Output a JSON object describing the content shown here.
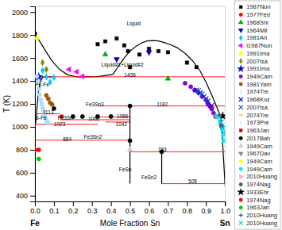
{
  "chart_data": {
    "type": "scatter",
    "xlabel": "Mole Fraction Sn",
    "ylabel": "T (K)",
    "xlim": [
      0.0,
      1.0
    ],
    "ylim": [
      350,
      2050
    ],
    "xticks": [
      {
        "value": 0.0,
        "label": "0.0"
      },
      0.1,
      0.2,
      0.3,
      0.4,
      0.5,
      0.6,
      0.7,
      0.8,
      0.9,
      {
        "value": 1.0,
        "label": "1.0"
      }
    ],
    "yticks": [
      400,
      600,
      800,
      1000,
      1200,
      1400,
      1600,
      1800,
      2000
    ],
    "series": [
      {
        "type": "line",
        "color": "black",
        "x": [
          0.0,
          0.01,
          0.02,
          0.04,
          0.06,
          0.08,
          0.1,
          0.13,
          0.17,
          0.22,
          0.28,
          0.33,
          0.38,
          0.41
        ],
        "values": [
          1811,
          1785,
          1758,
          1705,
          1650,
          1600,
          1555,
          1500,
          1455,
          1435,
          1436,
          1438,
          1450,
          1456
        ]
      },
      {
        "type": "line",
        "color": "black",
        "x": [
          0.41,
          0.44,
          0.47,
          0.5,
          0.53,
          0.56,
          0.59,
          0.62,
          0.65,
          0.68,
          0.71,
          0.75,
          0.79,
          0.83,
          0.87,
          0.9,
          0.93,
          0.96,
          0.98,
          1.0
        ],
        "values": [
          1456,
          1530,
          1600,
          1660,
          1700,
          1730,
          1748,
          1752,
          1748,
          1735,
          1718,
          1688,
          1640,
          1575,
          1485,
          1390,
          1280,
          1160,
          1080,
          505
        ]
      },
      {
        "type": "line",
        "color": "black",
        "x": [
          0.0,
          0.004,
          0.008,
          0.012,
          0.018,
          0.025,
          0.04,
          0.06,
          0.09
        ],
        "values": [
          995,
          1040,
          1100,
          1190,
          1300,
          1380,
          1432,
          1436,
          1436
        ]
      },
      {
        "type": "line",
        "color": "red",
        "x": [
          0.0,
          1.0
        ],
        "values": [
          1436,
          1436
        ]
      },
      {
        "type": "line",
        "color": "red",
        "x": [
          0.33,
          1.0
        ],
        "values": [
          1182,
          1182
        ]
      },
      {
        "type": "line",
        "color": "red",
        "x": [
          0.33,
          0.5
        ],
        "values": [
          1086,
          1086
        ]
      },
      {
        "type": "line",
        "color": "red",
        "x": [
          0.13,
          0.5
        ],
        "values": [
          1062,
          1062
        ]
      },
      {
        "type": "line",
        "color": "red",
        "x": [
          0.0,
          0.13
        ],
        "values": [
          1113,
          1113
        ]
      },
      {
        "type": "line",
        "color": "red",
        "x": [
          0.0,
          0.33
        ],
        "values": [
          1023,
          1023
        ]
      },
      {
        "type": "line",
        "color": "red",
        "x": [
          0.0,
          0.5
        ],
        "values": [
          884,
          884
        ]
      },
      {
        "type": "line",
        "color": "red",
        "x": [
          0.5,
          1.0
        ],
        "values": [
          783,
          783
        ]
      },
      {
        "type": "line",
        "color": "red",
        "x": [
          0.667,
          1.0
        ],
        "values": [
          505,
          505
        ]
      },
      {
        "type": "line",
        "color": "red",
        "x": [
          0.37,
          0.5
        ],
        "values": [
          1042,
          1042
        ]
      },
      {
        "type": "line",
        "color": "black",
        "x": [
          0.5,
          0.5
        ],
        "values": [
          505,
          1182
        ]
      },
      {
        "type": "line",
        "color": "black",
        "x": [
          0.667,
          0.667
        ],
        "values": [
          505,
          783
        ]
      },
      {
        "type": "scatter",
        "color": "#000000",
        "marker": "square",
        "x": [
          0.0,
          0.33,
          0.37,
          0.43,
          0.47,
          0.49,
          0.5,
          0.55,
          0.6,
          0.65,
          0.7,
          0.8,
          0.85
        ],
        "values": [
          1811,
          1720,
          1745,
          1770,
          1710,
          1660,
          1520,
          1630,
          1680,
          1660,
          1650,
          1560,
          1520
        ]
      },
      {
        "type": "scatter",
        "color": "#ff0000",
        "marker": "circle",
        "x": [
          0.0
        ],
        "values": [
          800
        ]
      },
      {
        "type": "scatter",
        "color": "#00aa00",
        "marker": "triangle-up",
        "x": [
          0.37,
          0.7
        ],
        "values": [
          1630,
          1420
        ]
      },
      {
        "type": "scatter",
        "color": "#0000cc",
        "marker": "triangle-down",
        "x": [
          0.43,
          0.6
        ],
        "values": [
          1590,
          1650
        ]
      },
      {
        "type": "scatter",
        "color": "#00ccff",
        "marker": "diamond",
        "x": [
          0.04,
          0.06,
          0.08,
          0.1
        ],
        "values": [
          1490,
          1435,
          1390,
          1430
        ]
      },
      {
        "type": "scatter",
        "color": "#ff00ff",
        "marker": "triangle-left",
        "x": [
          0.18,
          0.22,
          0.25
        ],
        "values": [
          1500,
          1480,
          1440
        ]
      },
      {
        "type": "scatter",
        "color": "#ffff00",
        "marker": "triangle-up",
        "x": [
          0.01
        ],
        "values": [
          1775
        ]
      },
      {
        "type": "scatter",
        "color": "#888800",
        "marker": "diamond",
        "x": [
          0.04,
          0.06
        ],
        "values": [
          1560,
          1500
        ]
      },
      {
        "type": "scatter",
        "color": "#0000cc",
        "marker": "star",
        "x": [
          0.02
        ],
        "values": [
          1435
        ]
      },
      {
        "type": "scatter",
        "color": "#8800cc",
        "marker": "circle",
        "x": [
          0.79,
          0.82,
          0.84,
          0.86,
          0.88,
          0.9,
          0.91,
          0.92,
          0.93,
          0.94,
          0.95
        ],
        "values": [
          1380,
          1350,
          1320,
          1300,
          1265,
          1235,
          1200,
          1180,
          1155,
          1120,
          1090
        ]
      },
      {
        "type": "scatter",
        "color": "#aa5500",
        "marker": "circle",
        "x": [
          0.06,
          0.07,
          0.08,
          0.09
        ],
        "values": [
          1275,
          1245,
          1210,
          1195
        ]
      },
      {
        "type": "scatter",
        "color": "#aaddff",
        "marker": "circle",
        "x": [
          0.01,
          0.015,
          0.02,
          0.025,
          0.03,
          0.035,
          0.04,
          0.045,
          0.05,
          0.055,
          0.06,
          0.065,
          0.07
        ],
        "values": [
          1440,
          1390,
          1330,
          1280,
          1235,
          1200,
          1165,
          1135,
          1105,
          1085,
          1062,
          1042,
          1030
        ]
      },
      {
        "type": "scatter",
        "color": "#0000cc",
        "marker": "x",
        "x": [
          0.85,
          0.87,
          0.89,
          0.91,
          0.93
        ],
        "values": [
          1320,
          1295,
          1265,
          1225,
          1185
        ]
      },
      {
        "type": "scatter",
        "color": "#0055cc",
        "marker": "x",
        "x": [
          0.86,
          0.88,
          0.9
        ],
        "values": [
          1315,
          1285,
          1245
        ]
      },
      {
        "type": "scatter",
        "color": "#cc0000",
        "marker": "square",
        "x": [
          0.14
        ],
        "values": [
          1090
        ]
      },
      {
        "type": "scatter",
        "color": "#000000",
        "marker": "circle",
        "x": [
          0.1,
          0.2,
          0.25,
          0.33,
          0.4,
          0.5,
          0.5,
          0.667
        ],
        "values": [
          1160,
          1090,
          1090,
          1090,
          1090,
          880,
          1182,
          783
        ]
      },
      {
        "type": "scatter",
        "color": "#cccccc",
        "marker": "triangle-up",
        "x": [
          0.5
        ],
        "values": [
          800
        ]
      },
      {
        "type": "scatter",
        "color": "#888888",
        "marker": "triangle-down",
        "x": [
          0.95
        ],
        "values": [
          1095
        ]
      },
      {
        "type": "scatter",
        "color": "#ffff00",
        "marker": "circle",
        "x": [
          0.985
        ],
        "values": [
          1095
        ]
      },
      {
        "type": "scatter",
        "color": "#00eeff",
        "marker": "circle",
        "x": [
          0.96,
          0.975,
          0.985,
          0.99,
          0.995
        ],
        "values": [
          1095,
          1040,
          980,
          930,
          880
        ]
      },
      {
        "type": "scatter",
        "color": "#ffaacc",
        "marker": "triangle-right",
        "x": [
          0.975
        ],
        "values": [
          1095
        ]
      },
      {
        "type": "scatter",
        "color": "#555555",
        "marker": "circle",
        "x": [
          0.98
        ],
        "values": [
          1010
        ]
      },
      {
        "type": "scatter",
        "color": "#000000",
        "marker": "star",
        "x": [
          0.988
        ],
        "values": [
          1095
        ]
      },
      {
        "type": "scatter",
        "color": "#ff0000",
        "marker": "circle",
        "x": [
          0.02
        ],
        "values": [
          800
        ]
      },
      {
        "type": "scatter",
        "color": "#00cc00",
        "marker": "circle",
        "x": [
          0.02
        ],
        "values": [
          720
        ]
      },
      {
        "type": "scatter",
        "color": "#2255cc",
        "marker": "plus",
        "x": [
          0.97,
          0.98,
          0.99,
          1.0,
          1.0
        ],
        "values": [
          1100,
          1055,
          1005,
          955,
          505
        ]
      },
      {
        "type": "scatter",
        "color": "#00cccc",
        "marker": "x",
        "x": [
          0.97,
          0.98,
          0.99
        ],
        "values": [
          1080,
          1040,
          990
        ]
      }
    ],
    "annotations": [
      {
        "text": "1436",
        "x": 0.5,
        "y": 1454
      },
      {
        "text": "1182",
        "x": 0.67,
        "y": 1200
      },
      {
        "text": "1086",
        "x": 0.46,
        "y": 1094
      },
      {
        "text": "1062",
        "x": 0.31,
        "y": 1070
      },
      {
        "text": "1113",
        "x": 0.07,
        "y": 1121
      },
      {
        "text": "1023",
        "x": 0.13,
        "y": 1031
      },
      {
        "text": "884",
        "x": 0.17,
        "y": 892
      },
      {
        "text": "783",
        "x": 0.67,
        "y": 801
      },
      {
        "text": "505",
        "x": 0.83,
        "y": 523
      },
      {
        "text": "1042",
        "x": 0.455,
        "y": 1022
      },
      {
        "text": "Liquid",
        "x": 0.52,
        "y": 1900
      },
      {
        "text": "Liquid#1+Liquid#2",
        "x": 0.46,
        "y": 1545
      },
      {
        "text": "+γ-Fe",
        "x": 0.033,
        "y": 1370
      },
      {
        "text": "α-Fe",
        "x": 0.007,
        "y": 1085
      },
      {
        "text": "Fe3Sn3",
        "x": 0.315,
        "y": 1195
      },
      {
        "text": "Fe3Sn",
        "x": 0.16,
        "y": 1073
      },
      {
        "text": "Fe3Sn2",
        "x": 0.305,
        "y": 913
      },
      {
        "text": "FeSn",
        "x": 0.475,
        "y": 630
      },
      {
        "text": "FeSn2",
        "x": 0.6,
        "y": 560
      },
      {
        "text": "Fe",
        "x": 0.0
      },
      {
        "text": "Sn",
        "x": 1.0
      }
    ],
    "legend_entries": [
      {
        "label": "1987Nun",
        "color": "#000000",
        "marker": "square"
      },
      {
        "label": "1977Fed",
        "color": "#ff0000",
        "marker": "circle"
      },
      {
        "label": "1968Shi",
        "color": "#00aa00",
        "marker": "triangle-up"
      },
      {
        "label": "1964Mil",
        "color": "#0000cc",
        "marker": "triangle-down"
      },
      {
        "label": "1981Ari",
        "color": "#00ccff",
        "marker": "diamond"
      },
      {
        "label": "l1987Nun",
        "color": "#ff00ff",
        "marker": "triangle-left"
      },
      {
        "label": "1991Ima",
        "color": "#ffff00",
        "marker": "triangle-up"
      },
      {
        "label": "2007Isa",
        "color": "#888800",
        "marker": "diamond"
      },
      {
        "label": "1991Ima",
        "color": "#0000cc",
        "marker": "star"
      },
      {
        "label": "1949Cam",
        "color": "#8800cc",
        "marker": "circle"
      },
      {
        "label": "1981Yam",
        "color": "#aa5500",
        "marker": "circle"
      },
      {
        "label": "1974Tre",
        "color": "#aaddff",
        "marker": "vline"
      },
      {
        "label": "1968Koz",
        "color": "#0000cc",
        "marker": "x"
      },
      {
        "label": "2007Isa",
        "color": "#0055cc",
        "marker": "x"
      },
      {
        "label": "2074Tre",
        "color": "#ffaa00",
        "marker": "hline"
      },
      {
        "label": "1973Pre",
        "color": "#aaddff",
        "marker": "vline"
      },
      {
        "label": "1963Jan",
        "color": "#cc0000",
        "marker": "square"
      },
      {
        "label": "2017Bah",
        "color": "#000000",
        "marker": "circle"
      },
      {
        "label": "1949Cam",
        "color": "#cccccc",
        "marker": "triangle-up"
      },
      {
        "label": "1967Dav",
        "color": "#888888",
        "marker": "triangle-down"
      },
      {
        "label": "1949Cam",
        "color": "#ffff00",
        "marker": "circle"
      },
      {
        "label": "1949Cam",
        "color": "#00eeff",
        "marker": "circle"
      },
      {
        "label": "2010Huang",
        "color": "#ffaacc",
        "marker": "triangle-right"
      },
      {
        "label": "1974Nag",
        "color": "#555555",
        "marker": "circle"
      },
      {
        "label": "1933Ehr",
        "color": "#000000",
        "marker": "star"
      },
      {
        "label": "1974Nag",
        "color": "#ff0000",
        "marker": "circle"
      },
      {
        "label": "1963Jan",
        "color": "#00cc00",
        "marker": "circle"
      },
      {
        "label": "2010Huang",
        "color": "#2255cc",
        "marker": "plus"
      },
      {
        "label": "2010Huang",
        "color": "#00cccc",
        "marker": "x"
      }
    ]
  }
}
